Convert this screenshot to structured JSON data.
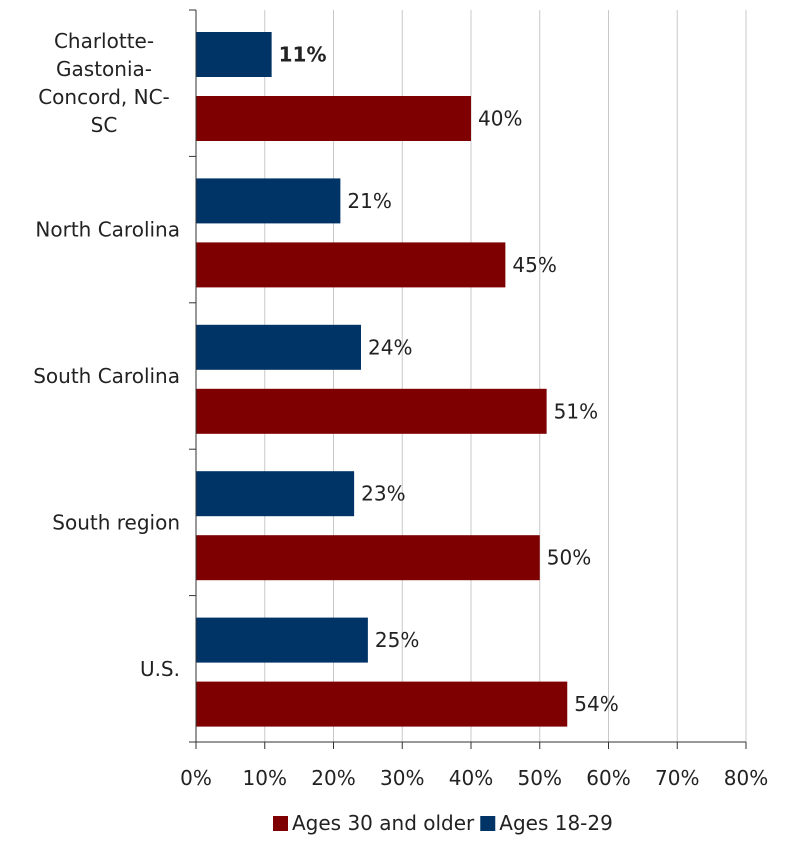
{
  "chart_data": {
    "type": "bar",
    "orientation": "horizontal",
    "categories": [
      [
        "Charlotte-",
        "Gastonia-",
        "Concord, NC-",
        "SC"
      ],
      [
        "North Carolina"
      ],
      [
        "South Carolina"
      ],
      [
        "South region"
      ],
      [
        "U.S."
      ]
    ],
    "series": [
      {
        "name": "Ages 18-29",
        "color": "#003366",
        "values": [
          11,
          21,
          24,
          23,
          25
        ],
        "labels": [
          "11%",
          "21%",
          "24%",
          "23%",
          "25%"
        ],
        "bold": [
          true,
          false,
          false,
          false,
          false
        ]
      },
      {
        "name": "Ages 30 and older",
        "color": "#7f0000",
        "values": [
          40,
          45,
          51,
          50,
          54
        ],
        "labels": [
          "40%",
          "45%",
          "51%",
          "50%",
          "54%"
        ],
        "bold": [
          false,
          false,
          false,
          false,
          false
        ]
      }
    ],
    "xlim": [
      0,
      80
    ],
    "x_ticks": [
      "0%",
      "10%",
      "20%",
      "30%",
      "40%",
      "50%",
      "60%",
      "70%",
      "80%"
    ],
    "grid": true,
    "legend": {
      "placement": "bottom",
      "entries": [
        "Ages 30 and older",
        "Ages 18-29"
      ]
    }
  }
}
